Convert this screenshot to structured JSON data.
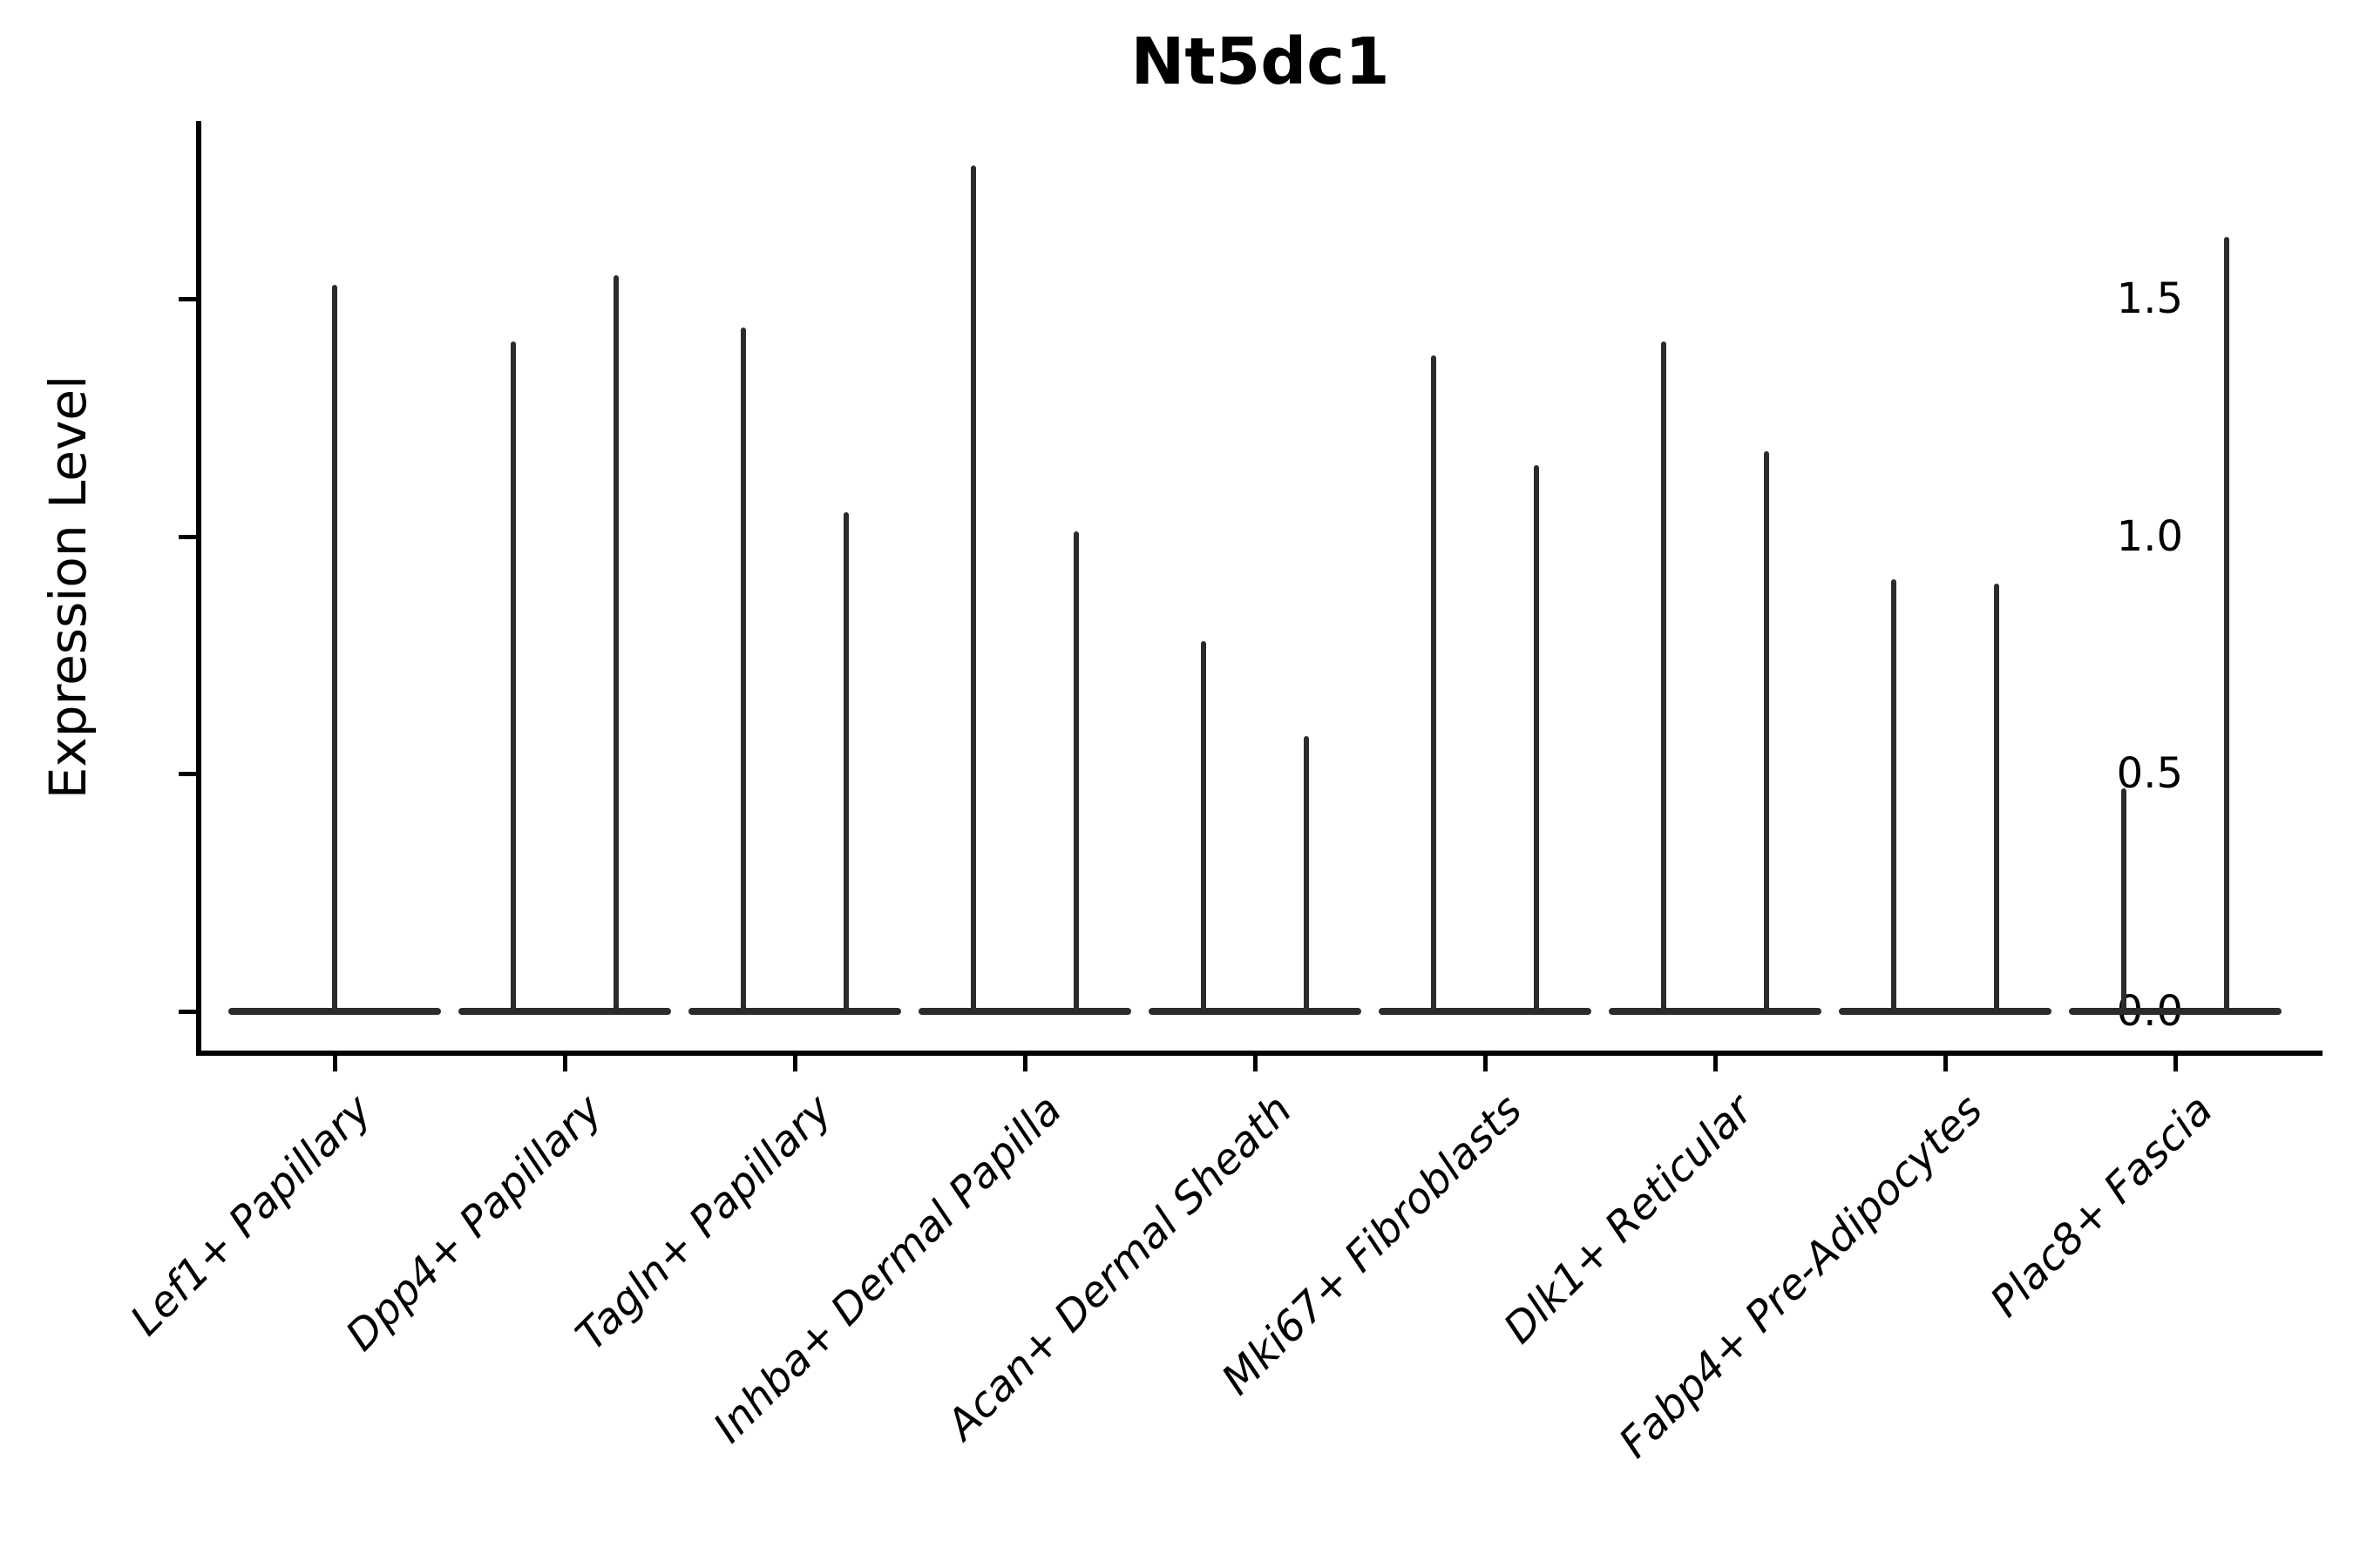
{
  "title": "Nt5dc1",
  "ylabel": "Expression Level",
  "chart_data": {
    "type": "violin",
    "title": "Nt5dc1",
    "xlabel": "",
    "ylabel": "Expression Level",
    "ylim": [
      -0.09,
      1.87
    ],
    "yticks": [
      0.0,
      0.5,
      1.0,
      1.5
    ],
    "ytick_labels": [
      "0.0",
      "0.5",
      "1.0",
      "1.5"
    ],
    "legend": "none",
    "grid": false,
    "x_tick_rotation": 45,
    "description": "Violin plot of Nt5dc1 expression per fibroblast cluster. Each violin is almost entirely concentrated at expression 0 (flat wide base) with a hair-thin tail rising to the maximum expressing cell. Every category except the first contains two side-by-side violins (split groups); max_values lists the peak Expression Level of each violin from left to right.",
    "categories": [
      "Lef1+ Papillary",
      "Dpp4+ Papillary",
      "Tagln+ Papillary",
      "Inhba+ Dermal Papilla",
      "Acan+ Dermal Sheath",
      "Mki67+ Fibroblasts",
      "Dlk1+ Reticular",
      "Fabp4+ Pre-Adipocytes",
      "Plac8+ Fascia"
    ],
    "groups": [
      {
        "label": "Lef1+ Papillary",
        "max_values": [
          1.53
        ]
      },
      {
        "label": "Dpp4+ Papillary",
        "max_values": [
          1.41,
          1.55
        ]
      },
      {
        "label": "Tagln+ Papillary",
        "max_values": [
          1.44,
          1.05
        ]
      },
      {
        "label": "Inhba+ Dermal Papilla",
        "max_values": [
          1.78,
          1.01
        ]
      },
      {
        "label": "Acan+ Dermal Sheath",
        "max_values": [
          0.78,
          0.58
        ]
      },
      {
        "label": "Mki67+ Fibroblasts",
        "max_values": [
          1.38,
          1.15
        ]
      },
      {
        "label": "Dlk1+ Reticular",
        "max_values": [
          1.41,
          1.18
        ]
      },
      {
        "label": "Fabp4+ Pre-Adipocytes",
        "max_values": [
          0.91,
          0.9
        ]
      },
      {
        "label": "Plac8+ Fascia",
        "max_values": [
          0.47,
          1.63
        ]
      }
    ],
    "colors": {
      "violin": "#2b2b2b",
      "axis": "#000000",
      "text": "#000000",
      "background": "#ffffff"
    }
  }
}
